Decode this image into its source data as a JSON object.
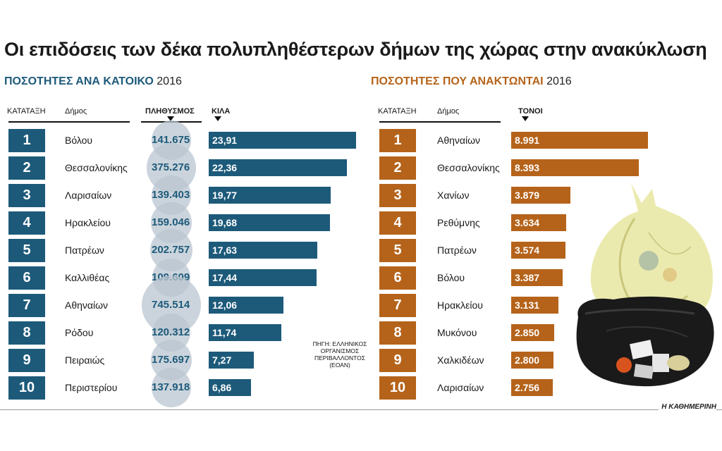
{
  "title": "Οι επιδόσεις των δέκα πολυπληθέστερων δήμων της χώρας στην ανακύκλωση",
  "publisher": "Η ΚΑΘΗΜΕΡΙΝΗ",
  "source": "ΠΗΓΗ: ΕΛΛΗΝΙΚΟΣ ΟΡΓΑΝΙΣΜΟΣ ΠΕΡΙΒΑΛΛΟΝΤΟΣ (ΕΟΑΝ)",
  "colors": {
    "left_accent": "#1d5a7a",
    "right_accent": "#b5631a",
    "circle": "#b9c6d0"
  },
  "chart_data": [
    {
      "type": "bar",
      "title": "ΠΟΣΟΤΗΤΕΣ ΑΝΑ ΚΑΤΟΙΚΟ",
      "year": "2016",
      "headers": {
        "rank": "ΚΑΤΑΤΑΞΗ",
        "municipality": "Δήμος",
        "population": "ΠΛΗΘΥΣΜΟΣ",
        "value": "ΚΙΛΑ"
      },
      "ranks": [
        "1",
        "2",
        "3",
        "4",
        "5",
        "6",
        "7",
        "8",
        "9",
        "10"
      ],
      "categories": [
        "Βόλου",
        "Θεσσαλονίκης",
        "Λαρισαίων",
        "Ηρακλείου",
        "Πατρέων",
        "Καλλιθέας",
        "Αθηναίων",
        "Ρόδου",
        "Πειραιώς",
        "Περιστερίου"
      ],
      "population_labels": [
        "141.675",
        "375.276",
        "139.403",
        "159.046",
        "202.757",
        "109.609",
        "745.514",
        "120.312",
        "175.697",
        "137.918"
      ],
      "population": [
        141675,
        375276,
        139403,
        159046,
        202757,
        109609,
        745514,
        120312,
        175697,
        137918
      ],
      "value_labels": [
        "23,91",
        "22,36",
        "19,77",
        "19,68",
        "17,63",
        "17,44",
        "12,06",
        "11,74",
        "7,27",
        "6,86"
      ],
      "values": [
        23.91,
        22.36,
        19.77,
        19.68,
        17.63,
        17.44,
        12.06,
        11.74,
        7.27,
        6.86
      ],
      "xlim": [
        0,
        24
      ]
    },
    {
      "type": "bar",
      "title": "ΠΟΣΟΤΗΤΕΣ  ΠΟΥ ΑΝΑΚΤΩΝΤΑΙ",
      "year": "2016",
      "headers": {
        "rank": "ΚΑΤΑΤΑΞΗ",
        "municipality": "Δήμος",
        "value": "ΤΟΝΟΙ"
      },
      "ranks": [
        "1",
        "2",
        "3",
        "4",
        "5",
        "6",
        "7",
        "8",
        "9",
        "10"
      ],
      "categories": [
        "Αθηναίων",
        "Θεσσαλονίκης",
        "Χανίων",
        "Ρεθύμνης",
        "Πατρέων",
        "Βόλου",
        "Ηρακλείου",
        "Μυκόνου",
        "Χαλκιδέων",
        "Λαρισαίων"
      ],
      "value_labels": [
        "8.991",
        "8.393",
        "3.879",
        "3.634",
        "3.574",
        "3.387",
        "3.131",
        "2.850",
        "2.800",
        "2.756"
      ],
      "values": [
        8991,
        8393,
        3879,
        3634,
        3574,
        3387,
        3131,
        2850,
        2800,
        2756
      ],
      "xlim": [
        0,
        9000
      ]
    }
  ]
}
